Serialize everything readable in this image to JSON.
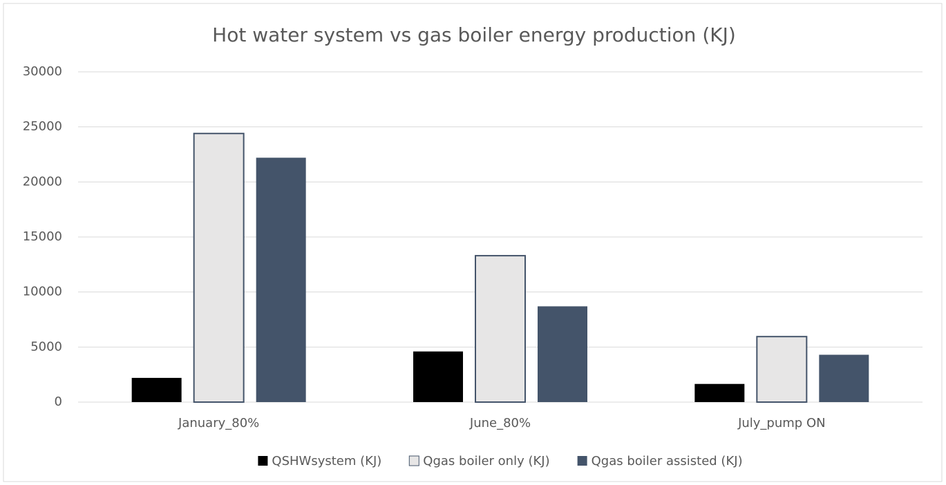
{
  "chart_data": {
    "type": "bar",
    "title": "Hot water system vs gas boiler energy production (KJ)",
    "categories": [
      "January_80%",
      "June_80%",
      "July_pump ON"
    ],
    "series": [
      {
        "name": "QSHWsystem (KJ)",
        "color": "#000000",
        "values": [
          2200,
          4600,
          1650
        ]
      },
      {
        "name": "Qgas boiler only (KJ)",
        "color": "#e7e6e6",
        "values": [
          24400,
          13300,
          5950
        ]
      },
      {
        "name": "Qgas boiler assisted (KJ)",
        "color": "#44546a",
        "values": [
          22200,
          8700,
          4300
        ]
      }
    ],
    "ylim": [
      0,
      30000
    ],
    "yticks": [
      0,
      5000,
      10000,
      15000,
      20000,
      25000,
      30000
    ],
    "grid": true,
    "legend": "bottom"
  }
}
